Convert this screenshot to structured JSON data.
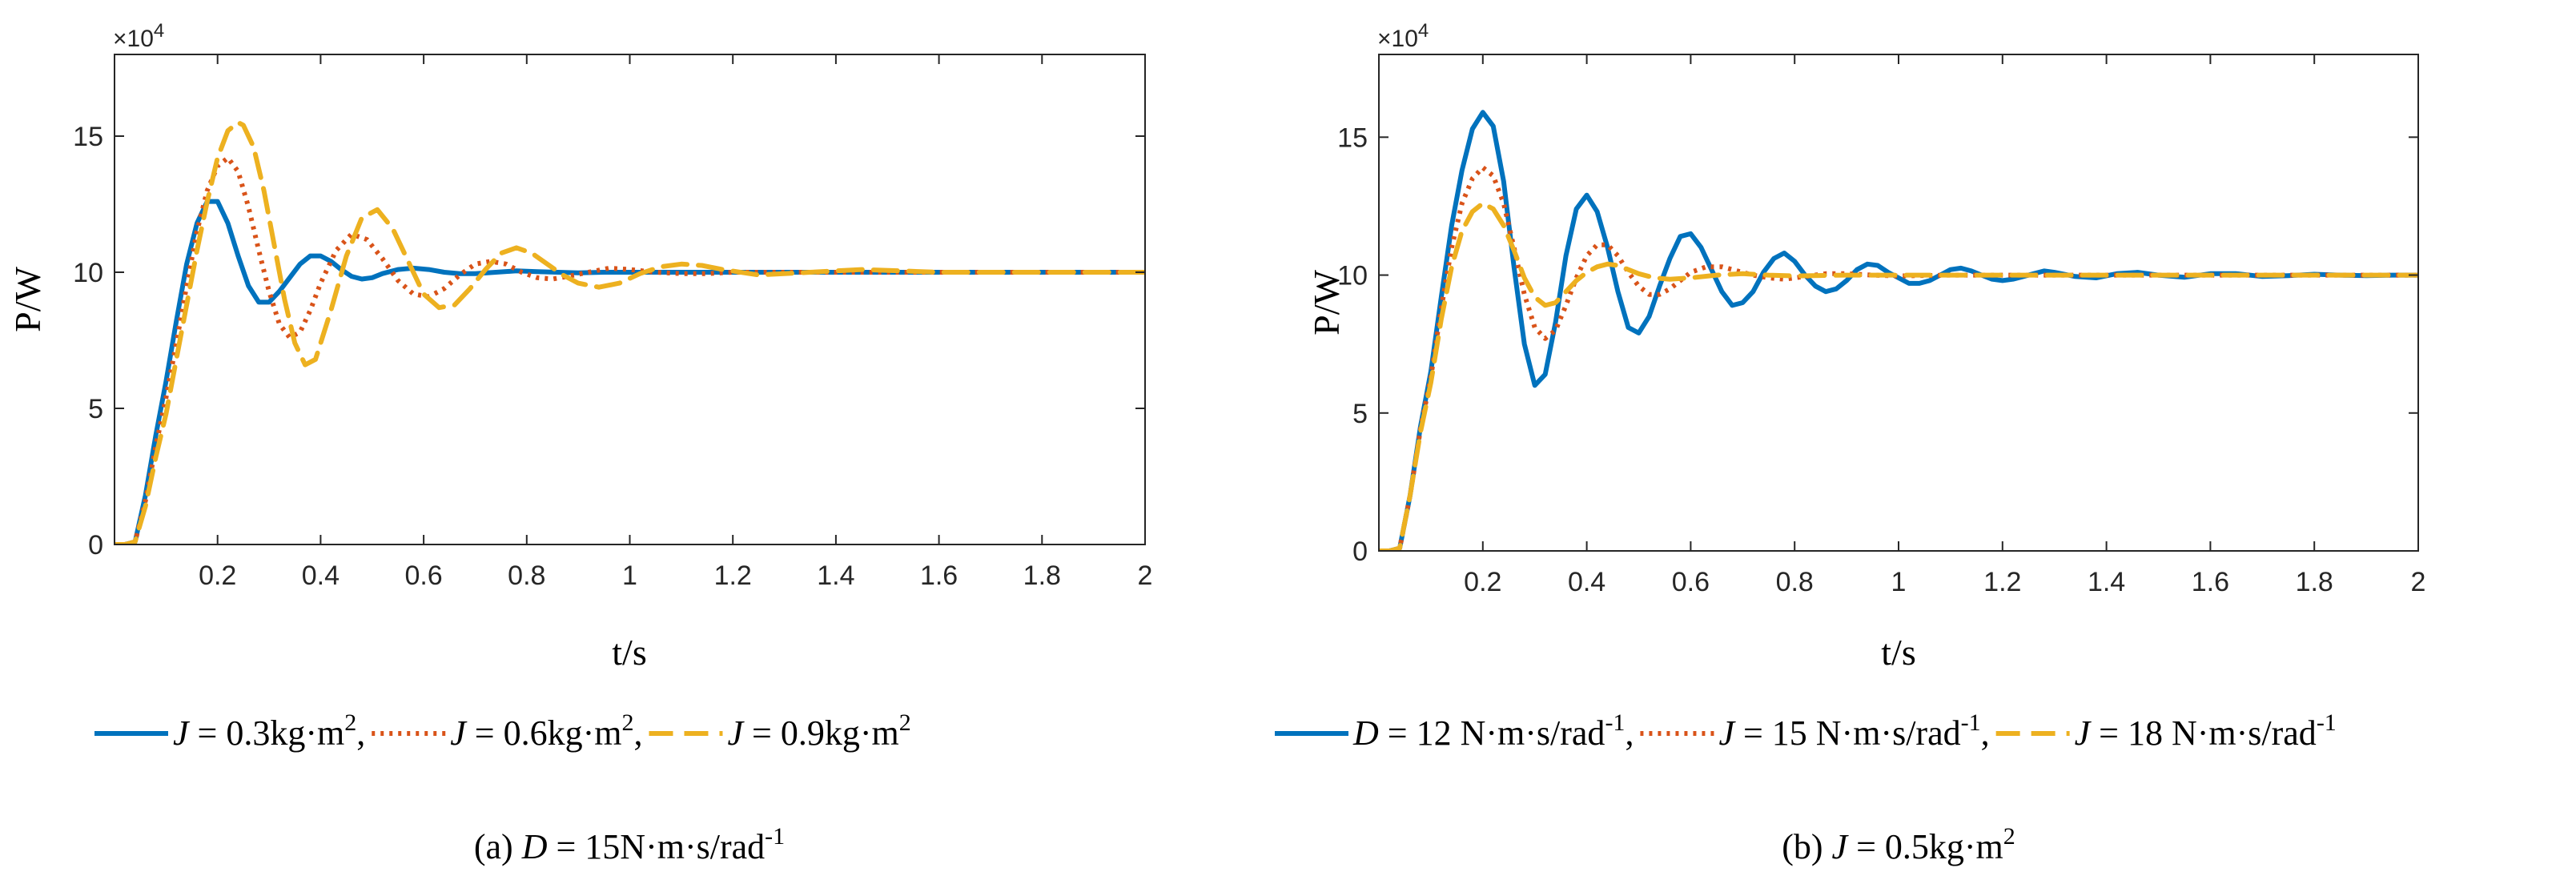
{
  "chart_data": [
    {
      "type": "line",
      "caption": {
        "prefix": "(a) ",
        "var": "D",
        "rest": " = 15N·m·s/rad",
        "sup": "-1"
      },
      "xlabel": "t/s",
      "ylabel": "P/W",
      "exponent": {
        "base": "×10",
        "power": "4"
      },
      "xlim": [
        0,
        2
      ],
      "ylim": [
        0,
        18
      ],
      "xticks": [
        0.2,
        0.4,
        0.6,
        0.8,
        1,
        1.2,
        1.4,
        1.6,
        1.8,
        2
      ],
      "xtick_labels": [
        "0.2",
        "0.4",
        "0.6",
        "0.8",
        "1",
        "1.2",
        "1.4",
        "1.6",
        "1.8",
        "2"
      ],
      "yticks": [
        0,
        5,
        10,
        15
      ],
      "ytick_labels": [
        "0",
        "5",
        "10",
        "15"
      ],
      "series": [
        {
          "name": "J = 0.3kg·m2",
          "var": "J",
          "text": " = 0.3kg·m",
          "sup": "2",
          "sep": ",",
          "color": "#0072BD",
          "style": "solid",
          "x": [
            0,
            0.02,
            0.04,
            0.06,
            0.08,
            0.1,
            0.12,
            0.14,
            0.16,
            0.18,
            0.2,
            0.22,
            0.24,
            0.26,
            0.28,
            0.3,
            0.32,
            0.34,
            0.36,
            0.38,
            0.4,
            0.42,
            0.44,
            0.46,
            0.48,
            0.5,
            0.52,
            0.55,
            0.58,
            0.61,
            0.64,
            0.67,
            0.7,
            0.74,
            0.78,
            0.82,
            0.86,
            0.9,
            0.95,
            1.0,
            1.1,
            1.2,
            1.3,
            1.4,
            1.5,
            1.6,
            1.7,
            1.8,
            1.9,
            2.0
          ],
          "y": [
            0,
            0,
            0.1,
            1.8,
            4.0,
            6.0,
            8.2,
            10.3,
            11.8,
            12.6,
            12.6,
            11.8,
            10.6,
            9.5,
            8.9,
            8.9,
            9.3,
            9.8,
            10.3,
            10.6,
            10.6,
            10.4,
            10.1,
            9.85,
            9.75,
            9.8,
            9.95,
            10.1,
            10.15,
            10.1,
            10.0,
            9.95,
            9.95,
            10.0,
            10.05,
            10.02,
            10.0,
            9.98,
            10.0,
            10.0,
            10.0,
            10.0,
            10.0,
            10.0,
            10.0,
            10.0,
            10.0,
            10.0,
            10.0,
            10.0
          ]
        },
        {
          "name": "J = 0.6kg·m2",
          "var": "J",
          "text": " = 0.6kg·m",
          "sup": "2",
          "sep": ",",
          "color": "#D95319",
          "style": "dotted",
          "x": [
            0,
            0.02,
            0.04,
            0.06,
            0.08,
            0.1,
            0.12,
            0.14,
            0.16,
            0.18,
            0.2,
            0.22,
            0.24,
            0.26,
            0.28,
            0.3,
            0.32,
            0.34,
            0.36,
            0.38,
            0.4,
            0.43,
            0.46,
            0.49,
            0.52,
            0.55,
            0.58,
            0.61,
            0.64,
            0.67,
            0.7,
            0.73,
            0.76,
            0.79,
            0.82,
            0.85,
            0.88,
            0.92,
            0.96,
            1.0,
            1.05,
            1.1,
            1.15,
            1.2,
            1.3,
            1.4,
            1.5,
            1.6,
            1.8,
            2.0
          ],
          "y": [
            0,
            0,
            0.1,
            1.6,
            3.6,
            5.4,
            7.4,
            9.5,
            11.5,
            13.0,
            13.9,
            14.2,
            13.7,
            12.4,
            10.8,
            9.3,
            8.1,
            7.6,
            7.8,
            8.6,
            9.6,
            10.8,
            11.4,
            11.2,
            10.5,
            9.7,
            9.2,
            9.1,
            9.4,
            9.9,
            10.3,
            10.4,
            10.3,
            10.0,
            9.8,
            9.75,
            9.85,
            10.0,
            10.15,
            10.1,
            10.0,
            9.95,
            9.95,
            10.0,
            10.0,
            10.0,
            10.0,
            10.0,
            10.0,
            10.0
          ]
        },
        {
          "name": "J = 0.9kg·m2",
          "var": "J",
          "text": " = 0.9kg·m",
          "sup": "2",
          "sep": "",
          "color": "#EDB120",
          "style": "dashed",
          "x": [
            0,
            0.02,
            0.04,
            0.06,
            0.08,
            0.1,
            0.12,
            0.14,
            0.16,
            0.18,
            0.2,
            0.22,
            0.24,
            0.25,
            0.27,
            0.29,
            0.31,
            0.33,
            0.35,
            0.37,
            0.39,
            0.42,
            0.45,
            0.48,
            0.51,
            0.54,
            0.57,
            0.6,
            0.63,
            0.66,
            0.69,
            0.72,
            0.75,
            0.78,
            0.81,
            0.84,
            0.87,
            0.9,
            0.94,
            0.98,
            1.02,
            1.06,
            1.1,
            1.14,
            1.18,
            1.25,
            1.35,
            1.45,
            1.6,
            1.8,
            2.0
          ],
          "y": [
            0,
            0,
            0.1,
            1.4,
            3.2,
            4.8,
            6.8,
            8.8,
            10.8,
            12.6,
            14.2,
            15.2,
            15.5,
            15.4,
            14.6,
            13.0,
            11.0,
            9.0,
            7.4,
            6.6,
            6.8,
            8.6,
            10.6,
            12.0,
            12.3,
            11.6,
            10.4,
            9.2,
            8.7,
            8.8,
            9.4,
            10.1,
            10.7,
            10.9,
            10.7,
            10.3,
            9.9,
            9.6,
            9.45,
            9.6,
            9.95,
            10.2,
            10.3,
            10.25,
            10.1,
            9.9,
            10.0,
            10.1,
            10.0,
            10.0,
            10.0
          ]
        }
      ]
    },
    {
      "type": "line",
      "caption": {
        "prefix": "(b) ",
        "var": "J",
        "rest": " = 0.5kg·m",
        "sup": "2"
      },
      "xlabel": "t/s",
      "ylabel": "P/W",
      "exponent": {
        "base": "×10",
        "power": "4"
      },
      "xlim": [
        0,
        2
      ],
      "ylim": [
        0,
        18
      ],
      "xticks": [
        0.2,
        0.4,
        0.6,
        0.8,
        1,
        1.2,
        1.4,
        1.6,
        1.8,
        2
      ],
      "xtick_labels": [
        "0.2",
        "0.4",
        "0.6",
        "0.8",
        "1",
        "1.2",
        "1.4",
        "1.6",
        "1.8",
        "2"
      ],
      "yticks": [
        0,
        5,
        10,
        15
      ],
      "ytick_labels": [
        "0",
        "5",
        "10",
        "15"
      ],
      "series": [
        {
          "name": "D = 12 N·m·s/rad-1",
          "var": "D",
          "text": " = 12 N·m·s/rad",
          "sup": "-1",
          "sep": ",",
          "color": "#0072BD",
          "style": "solid",
          "x": [
            0,
            0.02,
            0.04,
            0.06,
            0.08,
            0.1,
            0.12,
            0.14,
            0.16,
            0.18,
            0.2,
            0.22,
            0.24,
            0.26,
            0.28,
            0.3,
            0.32,
            0.34,
            0.36,
            0.38,
            0.4,
            0.42,
            0.44,
            0.46,
            0.48,
            0.5,
            0.52,
            0.54,
            0.56,
            0.58,
            0.6,
            0.62,
            0.64,
            0.66,
            0.68,
            0.7,
            0.72,
            0.74,
            0.76,
            0.78,
            0.8,
            0.82,
            0.84,
            0.86,
            0.88,
            0.9,
            0.92,
            0.94,
            0.96,
            0.98,
            1.0,
            1.02,
            1.04,
            1.06,
            1.08,
            1.1,
            1.12,
            1.14,
            1.16,
            1.18,
            1.2,
            1.22,
            1.24,
            1.26,
            1.28,
            1.3,
            1.34,
            1.38,
            1.42,
            1.46,
            1.5,
            1.55,
            1.6,
            1.65,
            1.7,
            1.75,
            1.8,
            1.85,
            1.9,
            1.95,
            2.0
          ],
          "y": [
            0,
            0,
            0.1,
            2.0,
            4.5,
            6.5,
            9.2,
            11.8,
            13.8,
            15.3,
            15.9,
            15.4,
            13.4,
            10.3,
            7.5,
            6.0,
            6.4,
            8.3,
            10.7,
            12.4,
            12.9,
            12.3,
            11.0,
            9.4,
            8.1,
            7.9,
            8.5,
            9.6,
            10.6,
            11.4,
            11.5,
            11.0,
            10.2,
            9.4,
            8.9,
            9.0,
            9.4,
            10.1,
            10.6,
            10.8,
            10.5,
            10.0,
            9.6,
            9.4,
            9.5,
            9.8,
            10.2,
            10.4,
            10.35,
            10.1,
            9.9,
            9.7,
            9.7,
            9.8,
            10.0,
            10.2,
            10.25,
            10.15,
            10.0,
            9.85,
            9.8,
            9.85,
            9.95,
            10.05,
            10.15,
            10.1,
            9.95,
            9.9,
            10.05,
            10.1,
            10.0,
            9.92,
            10.05,
            10.05,
            9.95,
            9.98,
            10.03,
            10.0,
            9.98,
            10.0,
            10.0
          ]
        },
        {
          "name": "J = 15 N·m·s/rad-1",
          "var": "J",
          "text": " = 15 N·m·s/rad",
          "sup": "-1",
          "sep": ",",
          "color": "#D95319",
          "style": "dotted",
          "x": [
            0,
            0.02,
            0.04,
            0.06,
            0.08,
            0.1,
            0.12,
            0.14,
            0.16,
            0.18,
            0.2,
            0.22,
            0.24,
            0.26,
            0.28,
            0.3,
            0.32,
            0.34,
            0.36,
            0.38,
            0.4,
            0.42,
            0.44,
            0.46,
            0.48,
            0.5,
            0.52,
            0.54,
            0.56,
            0.58,
            0.6,
            0.63,
            0.66,
            0.69,
            0.72,
            0.75,
            0.78,
            0.82,
            0.86,
            0.9,
            0.95,
            1.0,
            1.1,
            1.2,
            1.3,
            1.4,
            1.6,
            1.8,
            2.0
          ],
          "y": [
            0,
            0,
            0.1,
            2.0,
            4.4,
            6.3,
            8.8,
            11.0,
            12.6,
            13.5,
            13.9,
            13.6,
            12.6,
            11.0,
            9.3,
            8.1,
            7.7,
            8.0,
            8.9,
            9.9,
            10.7,
            11.1,
            11.1,
            10.7,
            10.1,
            9.6,
            9.3,
            9.3,
            9.5,
            9.8,
            10.1,
            10.3,
            10.3,
            10.15,
            10.0,
            9.9,
            9.85,
            9.95,
            10.05,
            10.05,
            10.0,
            9.97,
            10.0,
            10.0,
            10.0,
            10.0,
            10.0,
            10.0,
            10.0
          ]
        },
        {
          "name": "J = 18 N·m·s/rad-1",
          "var": "J",
          "text": " = 18 N·m·s/rad",
          "sup": "-1",
          "sep": "",
          "color": "#EDB120",
          "style": "dashed",
          "x": [
            0,
            0.02,
            0.04,
            0.06,
            0.08,
            0.1,
            0.12,
            0.14,
            0.16,
            0.18,
            0.2,
            0.22,
            0.24,
            0.26,
            0.28,
            0.3,
            0.32,
            0.34,
            0.36,
            0.38,
            0.4,
            0.42,
            0.44,
            0.46,
            0.48,
            0.5,
            0.53,
            0.56,
            0.6,
            0.65,
            0.7,
            0.75,
            0.8,
            0.9,
            1.0,
            1.2,
            1.4,
            1.6,
            1.8,
            2.0
          ],
          "y": [
            0,
            0,
            0.1,
            2.0,
            4.3,
            6.1,
            8.4,
            10.3,
            11.6,
            12.3,
            12.6,
            12.4,
            11.8,
            10.9,
            9.9,
            9.2,
            8.9,
            9.0,
            9.4,
            9.8,
            10.1,
            10.3,
            10.4,
            10.35,
            10.2,
            10.05,
            9.9,
            9.85,
            9.9,
            10.0,
            10.05,
            10.0,
            9.97,
            10.0,
            10.0,
            10.0,
            10.0,
            10.0,
            10.0,
            10.0
          ]
        }
      ]
    }
  ]
}
